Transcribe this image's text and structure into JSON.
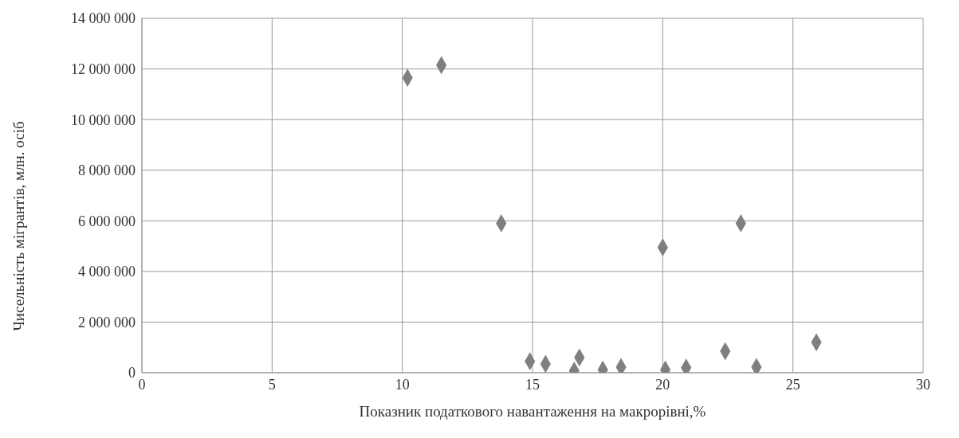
{
  "chart_data": {
    "type": "scatter",
    "xlabel": "Показник податкового навантаження на макрорівні,%",
    "ylabel": "Чисельність мігрантів, млн. осіб",
    "x": [
      10.2,
      11.5,
      13.8,
      20.0,
      23.0,
      14.9,
      15.5,
      16.6,
      16.8,
      17.7,
      18.4,
      20.1,
      20.9,
      22.4,
      23.6,
      25.9
    ],
    "series": [
      {
        "color": "#7f7f7f",
        "values": [
          11650000,
          12150000,
          5900000,
          4950000,
          5900000,
          450000,
          350000,
          80000,
          600000,
          120000,
          220000,
          120000,
          200000,
          850000,
          220000,
          1200000
        ]
      }
    ],
    "xlim": [
      0,
      30
    ],
    "xticks": [
      0,
      5,
      10,
      15,
      20,
      25,
      30
    ],
    "ylim": [
      0,
      14000000
    ],
    "yticks": [
      {
        "value": 0,
        "label": "0"
      },
      {
        "value": 2000000,
        "label": "2 000 000"
      },
      {
        "value": 4000000,
        "label": "4 000 000"
      },
      {
        "value": 6000000,
        "label": "6 000 000"
      },
      {
        "value": 8000000,
        "label": "8 000 000"
      },
      {
        "value": 10000000,
        "label": "10 000 000"
      },
      {
        "value": 12000000,
        "label": "12 000 000"
      },
      {
        "value": 14000000,
        "label": "14 000 000"
      }
    ],
    "grid": true,
    "marker": "diamond"
  }
}
